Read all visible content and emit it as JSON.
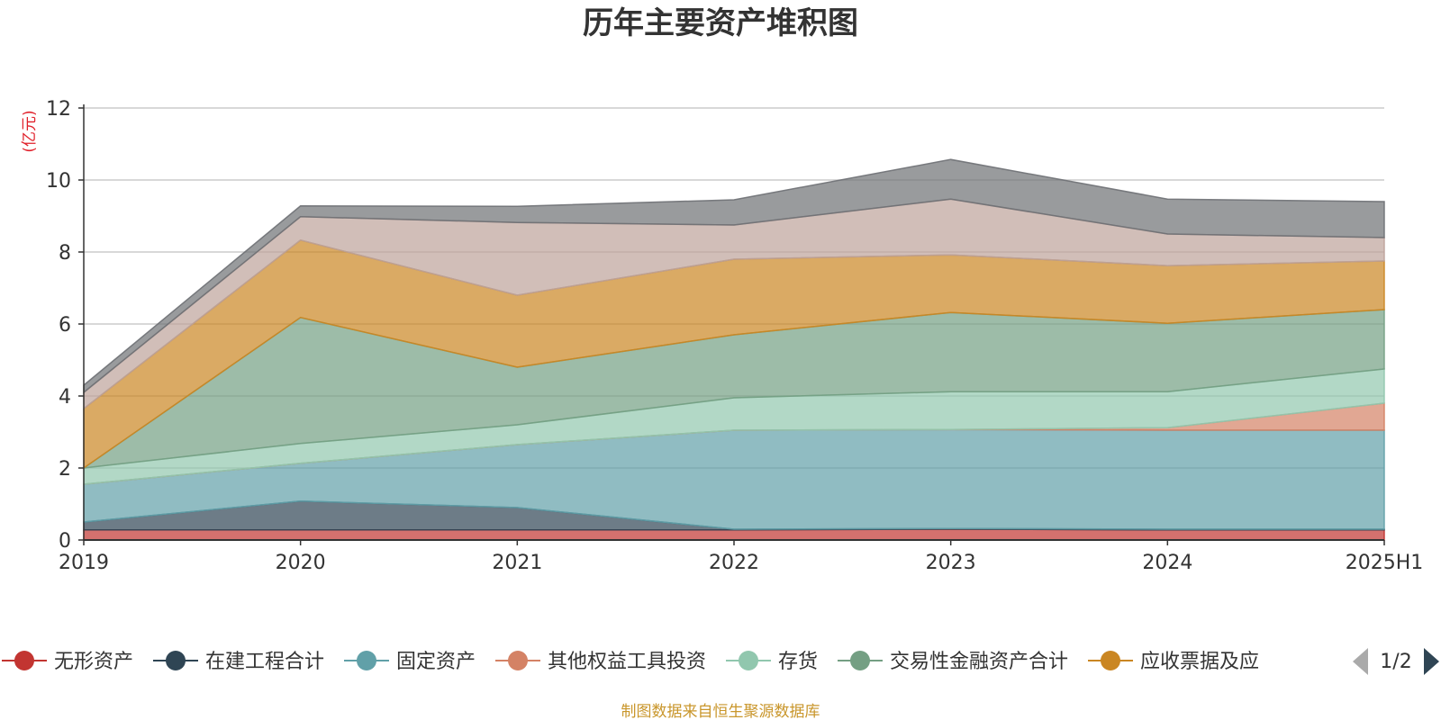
{
  "chart_data": {
    "type": "area",
    "stacked": true,
    "title": "历年主要资产堆积图",
    "unit_label": "(亿元)",
    "categories": [
      "2019",
      "2020",
      "2021",
      "2022",
      "2023",
      "2024",
      "2025H1"
    ],
    "ylim": [
      0,
      12
    ],
    "yticks": [
      "0",
      "2",
      "4",
      "6",
      "8",
      "10",
      "12"
    ],
    "grid": true,
    "legend_position": "bottom",
    "series": [
      {
        "name": "无形资产",
        "color": "#c23531",
        "values": [
          0.28,
          0.28,
          0.28,
          0.28,
          0.3,
          0.28,
          0.28
        ]
      },
      {
        "name": "在建工程合计",
        "color": "#2f4554",
        "values": [
          0.22,
          0.8,
          0.62,
          0.02,
          0.02,
          0.02,
          0.02
        ]
      },
      {
        "name": "固定资产",
        "color": "#61a0a8",
        "values": [
          1.05,
          1.05,
          1.75,
          2.75,
          2.75,
          2.75,
          2.75
        ]
      },
      {
        "name": "其他权益工具投资",
        "color": "#d48265",
        "values": [
          0.0,
          0.0,
          0.0,
          0.0,
          0.0,
          0.07,
          0.75
        ]
      },
      {
        "name": "存货",
        "color": "#91c7ae",
        "values": [
          0.45,
          0.55,
          0.55,
          0.9,
          1.05,
          1.0,
          0.95
        ]
      },
      {
        "name": "交易性金融资产合计",
        "color": "#749f83",
        "values": [
          0.0,
          3.5,
          1.6,
          1.75,
          2.2,
          1.9,
          1.65
        ]
      },
      {
        "name": "应收票据及应收账款",
        "color": "#ca8622",
        "values": [
          1.65,
          2.15,
          2.0,
          2.1,
          1.6,
          1.6,
          1.35
        ]
      },
      {
        "name": "",
        "color": "#bda29a",
        "values": [
          0.45,
          0.65,
          2.02,
          0.95,
          1.55,
          0.88,
          0.65
        ]
      },
      {
        "name": "",
        "color": "#6e7074",
        "values": [
          0.2,
          0.3,
          0.45,
          0.7,
          1.1,
          0.97,
          1.0
        ]
      }
    ]
  },
  "legend": {
    "items": [
      "无形资产",
      "在建工程合计",
      "固定资产",
      "其他权益工具投资",
      "存货",
      "交易性金融资产合计",
      "应收票据及应"
    ],
    "page_text": "1/2"
  },
  "source_text": "制图数据来自恒生聚源数据库"
}
